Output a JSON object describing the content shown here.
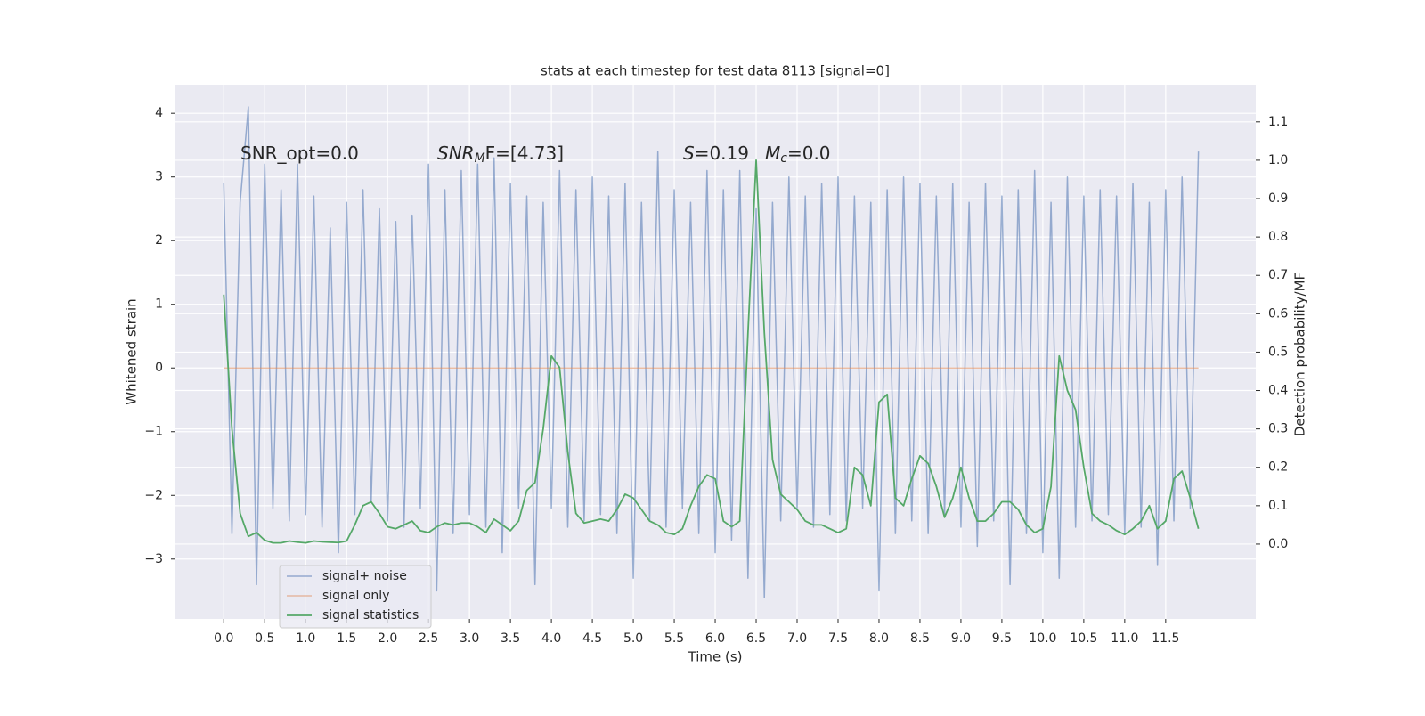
{
  "chart_data": {
    "type": "line",
    "title": "stats at each timestep for test data 8113 [signal=0]",
    "x_label": "Time (s)",
    "y_label": "Whitened strain",
    "y2_label": "Detection probability/MF",
    "annotations": [
      [
        "SNR_opt=0.0"
      ],
      [
        "SNR",
        "M",
        "F=[4.73]"
      ],
      [
        "S",
        "=0.19"
      ],
      [
        "M",
        "c",
        "=0.0"
      ]
    ],
    "x": [
      0.0,
      0.1,
      0.2,
      0.3,
      0.4,
      0.5,
      0.6,
      0.7,
      0.8,
      0.9,
      1.0,
      1.1,
      1.2,
      1.3,
      1.4,
      1.5,
      1.6,
      1.7,
      1.8,
      1.9,
      2.0,
      2.1,
      2.2,
      2.3,
      2.4,
      2.5,
      2.6,
      2.7,
      2.8,
      2.9,
      3.0,
      3.1,
      3.2,
      3.3,
      3.4,
      3.5,
      3.6,
      3.7,
      3.8,
      3.9,
      4.0,
      4.1,
      4.2,
      4.3,
      4.4,
      4.5,
      4.6,
      4.7,
      4.8,
      4.9,
      5.0,
      5.1,
      5.2,
      5.3,
      5.4,
      5.5,
      5.6,
      5.7,
      5.8,
      5.9,
      6.0,
      6.1,
      6.2,
      6.3,
      6.4,
      6.5,
      6.6,
      6.7,
      6.8,
      6.9,
      7.0,
      7.1,
      7.2,
      7.3,
      7.4,
      7.5,
      7.6,
      7.7,
      7.8,
      7.9,
      8.0,
      8.1,
      8.2,
      8.3,
      8.4,
      8.5,
      8.6,
      8.7,
      8.8,
      8.9,
      9.0,
      9.1,
      9.2,
      9.3,
      9.4,
      9.5,
      9.6,
      9.7,
      9.8,
      9.9,
      10.0,
      10.1,
      10.2,
      10.3,
      10.4,
      10.5,
      10.6,
      10.7,
      10.8,
      10.9,
      11.0,
      11.1,
      11.2,
      11.3,
      11.4,
      11.5,
      11.6,
      11.7,
      11.8,
      11.9
    ],
    "series": [
      {
        "name": "signal+ noise",
        "color": "#4c72b0",
        "axis": "y",
        "values": [
          2.9,
          -2.6,
          2.6,
          4.1,
          -3.4,
          3.2,
          -2.2,
          2.8,
          -2.4,
          3.2,
          -2.3,
          2.7,
          -2.5,
          2.2,
          -2.9,
          2.6,
          -2.3,
          2.8,
          -2.1,
          2.5,
          -2.4,
          2.3,
          -2.5,
          2.4,
          -2.2,
          3.2,
          -3.5,
          2.8,
          -2.6,
          3.1,
          -2.3,
          3.2,
          -2.5,
          3.3,
          -2.9,
          2.9,
          -2.2,
          2.7,
          -3.4,
          2.6,
          -2.2,
          3.1,
          -2.5,
          2.8,
          -2.4,
          3.0,
          -2.3,
          2.7,
          -2.6,
          2.9,
          -3.3,
          2.6,
          -2.4,
          3.4,
          -2.5,
          2.8,
          -2.2,
          2.6,
          -2.6,
          3.1,
          -2.9,
          2.8,
          -2.7,
          3.1,
          -3.3,
          2.5,
          -3.6,
          2.6,
          -2.4,
          3.0,
          -2.2,
          2.7,
          -2.5,
          2.9,
          -2.3,
          3.0,
          -2.4,
          2.7,
          -2.2,
          2.6,
          -3.5,
          2.8,
          -2.6,
          3.0,
          -2.4,
          2.9,
          -2.6,
          2.7,
          -2.3,
          2.9,
          -2.5,
          2.6,
          -2.8,
          2.9,
          -2.4,
          2.7,
          -3.4,
          2.8,
          -2.6,
          3.1,
          -2.9,
          2.6,
          -3.3,
          3.0,
          -2.5,
          2.7,
          -2.4,
          2.8,
          -2.3,
          2.7,
          -2.6,
          2.9,
          -2.5,
          2.6,
          -3.1,
          2.8,
          -2.4,
          3.0,
          -2.2,
          3.4
        ]
      },
      {
        "name": "signal only",
        "color": "#dd8452",
        "axis": "y",
        "values": [
          0,
          0,
          0,
          0,
          0,
          0,
          0,
          0,
          0,
          0,
          0,
          0,
          0,
          0,
          0,
          0,
          0,
          0,
          0,
          0,
          0,
          0,
          0,
          0,
          0,
          0,
          0,
          0,
          0,
          0,
          0,
          0,
          0,
          0,
          0,
          0,
          0,
          0,
          0,
          0,
          0,
          0,
          0,
          0,
          0,
          0,
          0,
          0,
          0,
          0,
          0,
          0,
          0,
          0,
          0,
          0,
          0,
          0,
          0,
          0,
          0,
          0,
          0,
          0,
          0,
          0,
          0,
          0,
          0,
          0,
          0,
          0,
          0,
          0,
          0,
          0,
          0,
          0,
          0,
          0,
          0,
          0,
          0,
          0,
          0,
          0,
          0,
          0,
          0,
          0,
          0,
          0,
          0,
          0,
          0,
          0,
          0,
          0,
          0,
          0,
          0,
          0,
          0,
          0,
          0,
          0,
          0,
          0,
          0,
          0,
          0,
          0,
          0,
          0,
          0,
          0,
          0,
          0,
          0,
          0
        ]
      },
      {
        "name": "signal statistics",
        "color": "#55a868",
        "axis": "y2",
        "values": [
          0.65,
          0.3,
          0.08,
          0.02,
          0.03,
          0.01,
          0.003,
          0.003,
          0.008,
          0.005,
          0.003,
          0.008,
          0.006,
          0.005,
          0.004,
          0.008,
          0.05,
          0.1,
          0.11,
          0.08,
          0.045,
          0.04,
          0.05,
          0.06,
          0.035,
          0.03,
          0.045,
          0.055,
          0.05,
          0.055,
          0.055,
          0.045,
          0.03,
          0.065,
          0.05,
          0.035,
          0.06,
          0.14,
          0.16,
          0.3,
          0.49,
          0.46,
          0.24,
          0.08,
          0.055,
          0.06,
          0.065,
          0.06,
          0.09,
          0.13,
          0.12,
          0.09,
          0.06,
          0.05,
          0.03,
          0.025,
          0.04,
          0.1,
          0.15,
          0.18,
          0.17,
          0.06,
          0.045,
          0.06,
          0.55,
          1.0,
          0.55,
          0.22,
          0.13,
          0.11,
          0.09,
          0.06,
          0.05,
          0.05,
          0.04,
          0.03,
          0.04,
          0.2,
          0.18,
          0.1,
          0.37,
          0.39,
          0.12,
          0.1,
          0.17,
          0.23,
          0.21,
          0.15,
          0.07,
          0.12,
          0.2,
          0.12,
          0.06,
          0.06,
          0.08,
          0.11,
          0.11,
          0.09,
          0.05,
          0.03,
          0.04,
          0.15,
          0.49,
          0.4,
          0.35,
          0.2,
          0.08,
          0.06,
          0.05,
          0.035,
          0.025,
          0.04,
          0.06,
          0.1,
          0.04,
          0.06,
          0.17,
          0.19,
          0.12,
          0.04
        ]
      }
    ],
    "xlim": [
      -0.59,
      12.6
    ],
    "ylim": [
      -3.94,
      4.45
    ],
    "y2lim": [
      -0.195,
      1.197
    ],
    "xticks": [
      {
        "value": 0,
        "label": "0.0"
      },
      0.5,
      {
        "value": 1,
        "label": "1.0"
      },
      1.5,
      {
        "value": 2,
        "label": "2.0"
      },
      2.5,
      {
        "value": 3,
        "label": "3.0"
      },
      3.5,
      {
        "value": 4,
        "label": "4.0"
      },
      4.5,
      {
        "value": 5,
        "label": "5.0"
      },
      5.5,
      {
        "value": 6,
        "label": "6.0"
      },
      6.5,
      {
        "value": 7,
        "label": "7.0"
      },
      7.5,
      {
        "value": 8,
        "label": "8.0"
      },
      8.5,
      {
        "value": 9,
        "label": "9.0"
      },
      9.5,
      {
        "value": 10,
        "label": "10.0"
      },
      10.5,
      {
        "value": 11,
        "label": "11.0"
      },
      11.5
    ],
    "yticks": [
      {
        "value": -3,
        "label": "−3"
      },
      {
        "value": -2,
        "label": "−2"
      },
      {
        "value": -1,
        "label": "−1"
      },
      0,
      1,
      2,
      3,
      4
    ],
    "y2ticks": [
      {
        "value": 0,
        "label": "0.0"
      },
      0.1,
      0.2,
      0.3,
      0.4,
      0.5,
      0.6,
      0.7,
      0.8,
      0.9,
      {
        "value": 1,
        "label": "1.0"
      },
      1.1
    ],
    "grid": true,
    "legend_loc": "lower left"
  }
}
